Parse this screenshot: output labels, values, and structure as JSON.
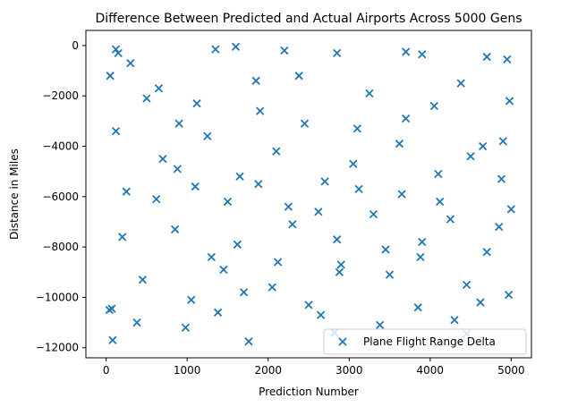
{
  "chart_data": {
    "type": "scatter",
    "title": "Difference Between Predicted and Actual Airports Across 5000 Gens",
    "xlabel": "Prediction Number",
    "ylabel": "Distance in Miles",
    "xlim": [
      -250,
      5250
    ],
    "ylim": [
      -12400,
      600
    ],
    "xticks": [
      0,
      1000,
      2000,
      3000,
      4000,
      5000
    ],
    "xtick_labels": [
      "0",
      "1000",
      "2000",
      "3000",
      "4000",
      "5000"
    ],
    "yticks": [
      0,
      -2000,
      -4000,
      -6000,
      -8000,
      -10000,
      -12000
    ],
    "ytick_labels": [
      "0",
      "−2000",
      "−4000",
      "−6000",
      "−8000",
      "−10000",
      "−12000"
    ],
    "grid": false,
    "legend": {
      "position": "lower-right",
      "entries": [
        "Plane Flight Range Delta"
      ]
    },
    "marker": "x",
    "color": "#1f77b4",
    "series": [
      {
        "name": "Plane Flight Range Delta",
        "points": [
          [
            80,
            -11700
          ],
          [
            1760,
            -11750
          ],
          [
            2820,
            -11400
          ],
          [
            4450,
            -11450
          ],
          [
            980,
            -11200
          ],
          [
            120,
            -150
          ],
          [
            1600,
            -50
          ],
          [
            150,
            -300
          ],
          [
            2200,
            -200
          ],
          [
            3700,
            -250
          ],
          [
            4700,
            -450
          ],
          [
            4950,
            -550
          ],
          [
            1350,
            -150
          ],
          [
            3900,
            -350
          ],
          [
            2850,
            -300
          ],
          [
            40,
            -10500
          ],
          [
            70,
            -10450
          ],
          [
            200,
            -7600
          ],
          [
            50,
            -1200
          ],
          [
            300,
            -700
          ],
          [
            500,
            -2100
          ],
          [
            700,
            -4500
          ],
          [
            900,
            -3100
          ],
          [
            1100,
            -5600
          ],
          [
            1300,
            -8400
          ],
          [
            1500,
            -6200
          ],
          [
            1700,
            -9800
          ],
          [
            1900,
            -2600
          ],
          [
            2100,
            -4200
          ],
          [
            2300,
            -7100
          ],
          [
            2500,
            -10300
          ],
          [
            2700,
            -5400
          ],
          [
            2900,
            -8700
          ],
          [
            3100,
            -3300
          ],
          [
            3300,
            -6700
          ],
          [
            3500,
            -9100
          ],
          [
            3700,
            -2900
          ],
          [
            3900,
            -7800
          ],
          [
            4100,
            -5100
          ],
          [
            4300,
            -10900
          ],
          [
            4500,
            -4400
          ],
          [
            4700,
            -8200
          ],
          [
            4900,
            -3800
          ],
          [
            5000,
            -6500
          ],
          [
            4980,
            -2200
          ],
          [
            250,
            -5800
          ],
          [
            450,
            -9300
          ],
          [
            650,
            -1700
          ],
          [
            850,
            -7300
          ],
          [
            1050,
            -10100
          ],
          [
            1250,
            -3600
          ],
          [
            1450,
            -8900
          ],
          [
            1650,
            -5200
          ],
          [
            1850,
            -1400
          ],
          [
            2050,
            -9600
          ],
          [
            2250,
            -6400
          ],
          [
            2450,
            -3100
          ],
          [
            2650,
            -10700
          ],
          [
            2850,
            -7700
          ],
          [
            3050,
            -4700
          ],
          [
            3250,
            -1900
          ],
          [
            3450,
            -8100
          ],
          [
            3650,
            -5900
          ],
          [
            3850,
            -10400
          ],
          [
            4050,
            -2400
          ],
          [
            4250,
            -6900
          ],
          [
            4450,
            -9500
          ],
          [
            4650,
            -4000
          ],
          [
            4850,
            -7200
          ],
          [
            4970,
            -9900
          ],
          [
            120,
            -3400
          ],
          [
            380,
            -11000
          ],
          [
            620,
            -6100
          ],
          [
            880,
            -4900
          ],
          [
            1120,
            -2300
          ],
          [
            1380,
            -10600
          ],
          [
            1620,
            -7900
          ],
          [
            1880,
            -5500
          ],
          [
            2120,
            -8600
          ],
          [
            2380,
            -1200
          ],
          [
            2620,
            -6600
          ],
          [
            2880,
            -9000
          ],
          [
            3120,
            -5700
          ],
          [
            3380,
            -11100
          ],
          [
            3620,
            -3900
          ],
          [
            3880,
            -8400
          ],
          [
            4120,
            -6200
          ],
          [
            4380,
            -1500
          ],
          [
            4620,
            -10200
          ],
          [
            4880,
            -5300
          ]
        ]
      }
    ]
  }
}
